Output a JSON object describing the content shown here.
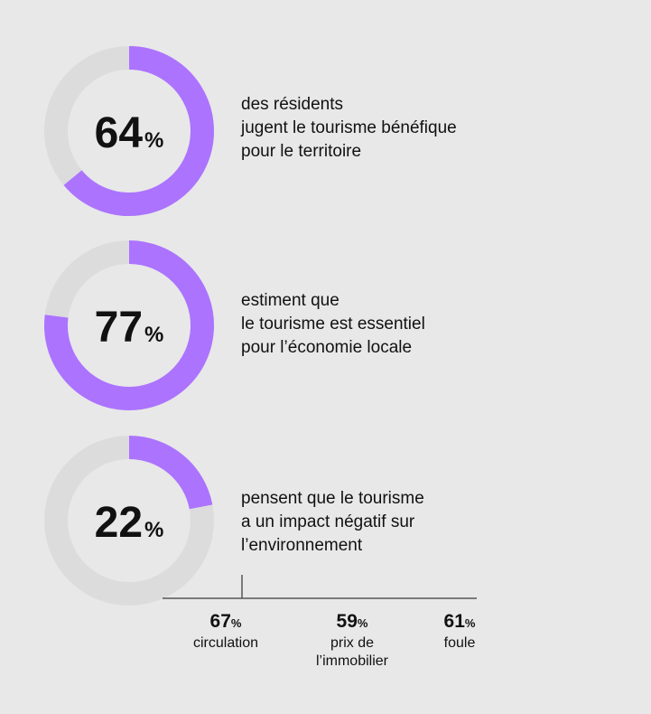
{
  "chart_data": {
    "type": "donut",
    "unit": "%",
    "series": [
      {
        "value": 64,
        "lines": [
          "des résidents",
          "jugent le tourisme bénéfique",
          "pour le territoire"
        ]
      },
      {
        "value": 77,
        "lines": [
          "estiment que",
          "le tourisme est essentiel",
          "pour l’économie locale"
        ]
      },
      {
        "value": 22,
        "lines": [
          "pensent que le tourisme",
          "a un impact négatif sur",
          "l’environnement"
        ]
      }
    ],
    "breakdown": [
      {
        "value": 67,
        "label": [
          "circulation"
        ]
      },
      {
        "value": 59,
        "label": [
          "prix de",
          "l’immobilier"
        ]
      },
      {
        "value": 61,
        "label": [
          "foule"
        ]
      }
    ]
  },
  "colors": {
    "accent": "#ac73ff",
    "track": "#dcdcdc",
    "background": "#e8e8e8"
  }
}
